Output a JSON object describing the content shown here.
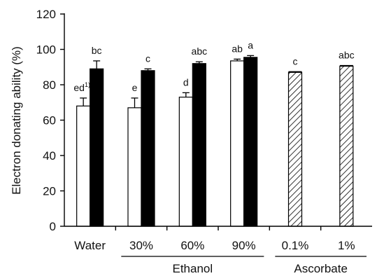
{
  "chart_data": {
    "type": "bar",
    "ylabel": "Electron donating ability (%)",
    "ylim": [
      0,
      120
    ],
    "yticks": [
      0,
      20,
      40,
      60,
      80,
      100,
      120
    ],
    "groups": [
      {
        "label": "Water",
        "bars": [
          {
            "value": 68,
            "error": 4.5,
            "style": "white",
            "label": "ed",
            "label_sup": "1)"
          },
          {
            "value": 89,
            "error": 4.5,
            "style": "black",
            "label": "bc"
          }
        ]
      },
      {
        "label": "30%",
        "bars": [
          {
            "value": 67,
            "error": 5.5,
            "style": "white",
            "label": "e"
          },
          {
            "value": 88,
            "error": 1,
            "style": "black",
            "label": "c"
          }
        ]
      },
      {
        "label": "60%",
        "bars": [
          {
            "value": 73,
            "error": 2.5,
            "style": "white",
            "label": "d"
          },
          {
            "value": 92,
            "error": 1,
            "style": "black",
            "label": "abc"
          }
        ]
      },
      {
        "label": "90%",
        "bars": [
          {
            "value": 93.5,
            "error": 1,
            "style": "white",
            "label": "ab"
          },
          {
            "value": 95.5,
            "error": 1,
            "style": "black",
            "label": "a"
          }
        ]
      },
      {
        "label": "0.1%",
        "bars": [
          {
            "value": 87,
            "error": 0.4,
            "style": "hatched",
            "label": "c"
          }
        ]
      },
      {
        "label": "1%",
        "bars": [
          {
            "value": 90.5,
            "error": 0.4,
            "style": "hatched",
            "label": "abc"
          }
        ]
      }
    ],
    "brackets": [
      {
        "label": "Ethanol",
        "from_group": 1,
        "to_group": 3
      },
      {
        "label": "Ascorbate",
        "from_group": 4,
        "to_group": 5
      }
    ],
    "colors": {
      "black": "#000000",
      "white": "#ffffff",
      "hatched": "#000000"
    }
  }
}
